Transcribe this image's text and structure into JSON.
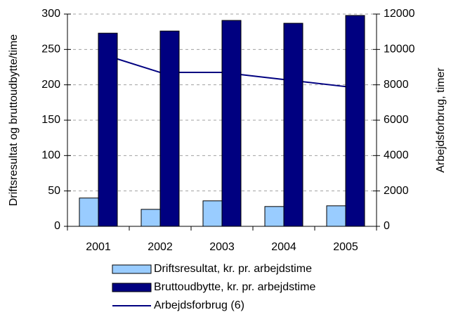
{
  "chart_data": {
    "type": "bar_line",
    "y_label": "Driftsresultat og bruttoudbytte/time",
    "y2_label": "Arbejdsforbrug, timer",
    "categories": [
      "2001",
      "2002",
      "2003",
      "2004",
      "2005"
    ],
    "series": [
      {
        "name": "Driftsresultat, kr. pr. arbejdstime",
        "color": "#99ccff",
        "values": [
          40,
          24,
          36,
          28,
          29
        ],
        "kind": "bar"
      },
      {
        "name": "Bruttoudbytte, kr. pr. arbejdstime",
        "color": "#000080",
        "values": [
          273,
          276,
          291,
          287,
          298
        ],
        "kind": "bar"
      },
      {
        "name": "Arbejdsforbrug (6)",
        "color": "#000080",
        "values": [
          9800,
          8700,
          8700,
          8300,
          7900
        ],
        "kind": "line",
        "axis": "y2"
      }
    ],
    "ylim": [
      0,
      300
    ],
    "yticks": [
      0,
      50,
      100,
      150,
      200,
      250,
      300
    ],
    "y2lim": [
      0,
      12000
    ],
    "y2ticks": [
      0,
      2000,
      4000,
      6000,
      8000,
      10000,
      12000
    ],
    "grid": true,
    "legend": "bottom"
  }
}
